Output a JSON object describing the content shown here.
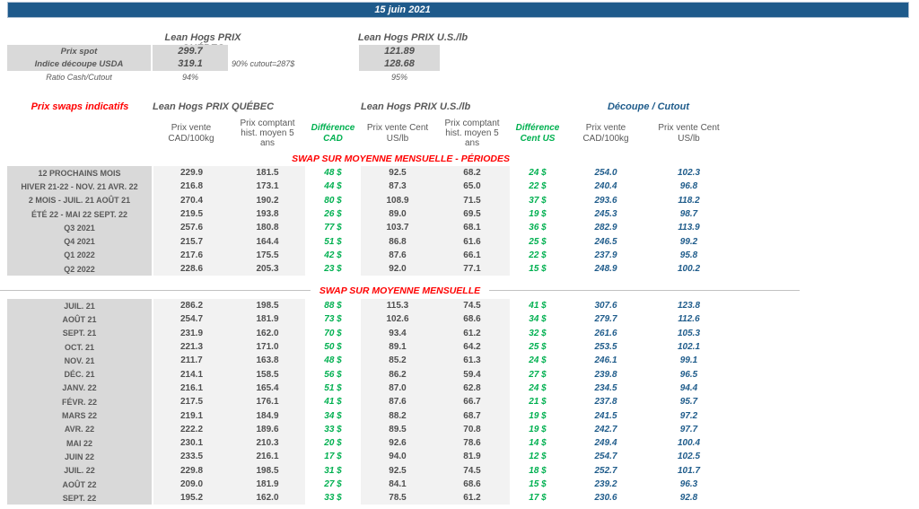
{
  "date_bar": {
    "date": "15 juin 2021"
  },
  "colors": {
    "bar_blue": "#1E5A8B",
    "accent_blue": "#1F5C8B",
    "accent_green": "#00B050",
    "accent_red": "#FF0000",
    "label_gray": "#D9D9D9",
    "band_gray": "#F2F2F2",
    "text_gray": "#595959"
  },
  "spot_section": {
    "quebec_heading": "Lean Hogs PRIX QUÉBEC",
    "us_heading": "Lean Hogs PRIX U.S./lb",
    "rows": [
      {
        "label": "Prix spot",
        "quebec": "299.7",
        "us": "121.89"
      },
      {
        "label": "Indice découpe USDA",
        "quebec": "319.1",
        "us": "128.68"
      },
      {
        "label": "Ratio Cash/Cutout",
        "quebec": "94%",
        "us": "95%"
      }
    ],
    "cutout_note": "90% cutout=287$"
  },
  "swap_table": {
    "title": "Prix swaps indicatifs",
    "quebec_heading": "Lean Hogs PRIX QUÉBEC",
    "us_heading": "Lean Hogs PRIX U.S./lb",
    "cutout_heading": "Découpe / Cutout",
    "columns": [
      "Prix vente CAD/100kg",
      "Prix comptant hist. moyen 5 ans",
      "Différence CAD",
      "Prix vente Cent US/lb",
      "Prix comptant hist. moyen 5 ans",
      "Différence Cent US",
      "Prix vente CAD/100kg",
      "Prix vente Cent US/lb"
    ],
    "periods_title": "SWAP SUR MOYENNE MENSUELLE - PÉRIODES",
    "monthly_title": "SWAP SUR MOYENNE MENSUELLE",
    "period_rows": [
      {
        "label": "12 PROCHAINS MOIS",
        "values": [
          "229.9",
          "181.5",
          "48 $",
          "92.5",
          "68.2",
          "24 $",
          "254.0",
          "102.3"
        ]
      },
      {
        "label": "HIVER 21-22 - NOV. 21 AVR. 22",
        "values": [
          "216.8",
          "173.1",
          "44 $",
          "87.3",
          "65.0",
          "22 $",
          "240.4",
          "96.8"
        ]
      },
      {
        "label": "2 MOIS - JUIL. 21 AOÛT 21",
        "values": [
          "270.4",
          "190.2",
          "80 $",
          "108.9",
          "71.5",
          "37 $",
          "293.6",
          "118.2"
        ]
      },
      {
        "label": "ÉTÉ 22 - MAI 22 SEPT. 22",
        "values": [
          "219.5",
          "193.8",
          "26 $",
          "89.0",
          "69.5",
          "19 $",
          "245.3",
          "98.7"
        ]
      },
      {
        "label": "Q3 2021",
        "values": [
          "257.6",
          "180.8",
          "77 $",
          "103.7",
          "68.1",
          "36 $",
          "282.9",
          "113.9"
        ]
      },
      {
        "label": "Q4 2021",
        "values": [
          "215.7",
          "164.4",
          "51 $",
          "86.8",
          "61.6",
          "25 $",
          "246.5",
          "99.2"
        ]
      },
      {
        "label": "Q1 2022",
        "values": [
          "217.6",
          "175.5",
          "42 $",
          "87.6",
          "66.1",
          "22 $",
          "237.9",
          "95.8"
        ]
      },
      {
        "label": "Q2 2022",
        "values": [
          "228.6",
          "205.3",
          "23 $",
          "92.0",
          "77.1",
          "15 $",
          "248.9",
          "100.2"
        ]
      }
    ],
    "monthly_rows": [
      {
        "label": "JUIL. 21",
        "values": [
          "286.2",
          "198.5",
          "88 $",
          "115.3",
          "74.5",
          "41 $",
          "307.6",
          "123.8"
        ]
      },
      {
        "label": "AOÛT 21",
        "values": [
          "254.7",
          "181.9",
          "73 $",
          "102.6",
          "68.6",
          "34 $",
          "279.7",
          "112.6"
        ]
      },
      {
        "label": "SEPT. 21",
        "values": [
          "231.9",
          "162.0",
          "70 $",
          "93.4",
          "61.2",
          "32 $",
          "261.6",
          "105.3"
        ]
      },
      {
        "label": "OCT. 21",
        "values": [
          "221.3",
          "171.0",
          "50 $",
          "89.1",
          "64.2",
          "25 $",
          "253.5",
          "102.1"
        ]
      },
      {
        "label": "NOV. 21",
        "values": [
          "211.7",
          "163.8",
          "48 $",
          "85.2",
          "61.3",
          "24 $",
          "246.1",
          "99.1"
        ]
      },
      {
        "label": "DÉC. 21",
        "values": [
          "214.1",
          "158.5",
          "56 $",
          "86.2",
          "59.4",
          "27 $",
          "239.8",
          "96.5"
        ]
      },
      {
        "label": "JANV. 22",
        "values": [
          "216.1",
          "165.4",
          "51 $",
          "87.0",
          "62.8",
          "24 $",
          "234.5",
          "94.4"
        ]
      },
      {
        "label": "FÉVR. 22",
        "values": [
          "217.5",
          "176.1",
          "41 $",
          "87.6",
          "66.7",
          "21 $",
          "237.8",
          "95.7"
        ]
      },
      {
        "label": "MARS 22",
        "values": [
          "219.1",
          "184.9",
          "34 $",
          "88.2",
          "68.7",
          "19 $",
          "241.5",
          "97.2"
        ]
      },
      {
        "label": "AVR. 22",
        "values": [
          "222.2",
          "189.6",
          "33 $",
          "89.5",
          "70.8",
          "19 $",
          "242.7",
          "97.7"
        ]
      },
      {
        "label": "MAI 22",
        "values": [
          "230.1",
          "210.3",
          "20 $",
          "92.6",
          "78.6",
          "14 $",
          "249.4",
          "100.4"
        ]
      },
      {
        "label": "JUIN 22",
        "values": [
          "233.5",
          "216.1",
          "17 $",
          "94.0",
          "81.9",
          "12 $",
          "254.7",
          "102.5"
        ]
      },
      {
        "label": "JUIL. 22",
        "values": [
          "229.8",
          "198.5",
          "31 $",
          "92.5",
          "74.5",
          "18 $",
          "252.7",
          "101.7"
        ]
      },
      {
        "label": "AOÛT 22",
        "values": [
          "209.0",
          "181.9",
          "27 $",
          "84.1",
          "68.6",
          "15 $",
          "239.2",
          "96.3"
        ]
      },
      {
        "label": "SEPT. 22",
        "values": [
          "195.2",
          "162.0",
          "33 $",
          "78.5",
          "61.2",
          "17 $",
          "230.6",
          "92.8"
        ]
      }
    ]
  }
}
